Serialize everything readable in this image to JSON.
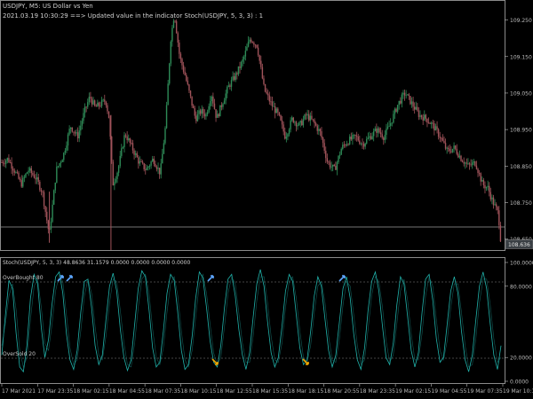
{
  "colors": {
    "background": "#000000",
    "bull_candle": "#2e8b57",
    "bear_candle": "#a0535a",
    "stoch_main": "#20b2aa",
    "level_line": "#8a8a8a",
    "axis": "#bbbbbb",
    "buy_arrow": "#5da6ff",
    "sell_arrow": "#f0a500"
  },
  "main_chart": {
    "symbol_line": "USDJPY, M5:  US Dollar vs Yen",
    "status_line": "2021.03.19 10:30:29 ==> Updated value in the indicator Stoch(USDJPY, 5, 3, 3) : 1",
    "price_labels": [
      "109.250",
      "109.150",
      "109.050",
      "108.950",
      "108.850",
      "108.750",
      "108.650"
    ],
    "current_price": "108.636"
  },
  "indicator": {
    "title": "Stoch(USDJPY, 5, 3, 3) 48.8636 31.1579 0.0000 0.0000 0.0000 0.0000",
    "overbought_label": "OverBought 80",
    "oversold_label": "OverSold 20",
    "scale_labels": [
      "100.0000",
      "80.0000",
      "20.0000",
      "0.0000"
    ]
  },
  "time_axis": [
    "17 Mar 2021",
    "17 Mar 23:35",
    "18 Mar 02:15",
    "18 Mar 04:55",
    "18 Mar 07:35",
    "18 Mar 10:15",
    "18 Mar 12:55",
    "18 Mar 15:35",
    "18 Mar 18:15",
    "18 Mar 20:55",
    "18 Mar 23:35",
    "19 Mar 02:15",
    "19 Mar 04:55",
    "19 Mar 07:35",
    "19 Mar 10:15"
  ],
  "chart_data": [
    {
      "type": "candlestick",
      "title": "USDJPY, M5:  US Dollar vs Yen",
      "ylim": [
        108.62,
        109.3
      ],
      "y_ticks": [
        109.25,
        109.15,
        109.05,
        108.95,
        108.85,
        108.75,
        108.65
      ],
      "current_price": 108.636,
      "close_path": [
        [
          0,
          108.86
        ],
        [
          7,
          108.87
        ],
        [
          14,
          108.84
        ],
        [
          22,
          108.8
        ],
        [
          30,
          108.84
        ],
        [
          38,
          108.82
        ],
        [
          46,
          108.78
        ],
        [
          54,
          108.66
        ],
        [
          62,
          108.84
        ],
        [
          70,
          108.88
        ],
        [
          78,
          108.96
        ],
        [
          86,
          108.93
        ],
        [
          94,
          109.0
        ],
        [
          100,
          109.04
        ],
        [
          106,
          109.01
        ],
        [
          112,
          109.02
        ],
        [
          118,
          109.03
        ],
        [
          122,
          108.98
        ],
        [
          126,
          108.8
        ],
        [
          132,
          108.84
        ],
        [
          140,
          108.94
        ],
        [
          148,
          108.9
        ],
        [
          156,
          108.86
        ],
        [
          164,
          108.84
        ],
        [
          172,
          108.87
        ],
        [
          180,
          108.83
        ],
        [
          186,
          108.96
        ],
        [
          192,
          109.2
        ],
        [
          196,
          109.27
        ],
        [
          202,
          109.15
        ],
        [
          208,
          109.1
        ],
        [
          214,
          109.04
        ],
        [
          220,
          108.98
        ],
        [
          226,
          109.0
        ],
        [
          232,
          108.99
        ],
        [
          238,
          109.05
        ],
        [
          244,
          108.98
        ],
        [
          250,
          109.02
        ],
        [
          258,
          109.07
        ],
        [
          266,
          109.1
        ],
        [
          274,
          109.14
        ],
        [
          282,
          109.2
        ],
        [
          290,
          109.18
        ],
        [
          298,
          109.06
        ],
        [
          306,
          109.02
        ],
        [
          314,
          108.99
        ],
        [
          322,
          108.93
        ],
        [
          330,
          108.98
        ],
        [
          338,
          108.96
        ],
        [
          346,
          108.99
        ],
        [
          354,
          108.97
        ],
        [
          362,
          108.94
        ],
        [
          370,
          108.86
        ],
        [
          378,
          108.84
        ],
        [
          386,
          108.9
        ],
        [
          394,
          108.92
        ],
        [
          402,
          108.93
        ],
        [
          410,
          108.91
        ],
        [
          418,
          108.93
        ],
        [
          426,
          108.95
        ],
        [
          434,
          108.93
        ],
        [
          442,
          108.97
        ],
        [
          450,
          109.02
        ],
        [
          458,
          109.05
        ],
        [
          466,
          109.02
        ],
        [
          474,
          108.99
        ],
        [
          482,
          108.98
        ],
        [
          490,
          108.96
        ],
        [
          498,
          108.93
        ],
        [
          506,
          108.89
        ],
        [
          514,
          108.9
        ],
        [
          522,
          108.87
        ],
        [
          530,
          108.85
        ],
        [
          538,
          108.86
        ],
        [
          546,
          108.8
        ],
        [
          552,
          108.79
        ],
        [
          558,
          108.75
        ],
        [
          564,
          108.72
        ],
        [
          567,
          108.636
        ]
      ]
    },
    {
      "type": "line",
      "title": "Stoch(USDJPY, 5, 3, 3) 48.8636 31.1579 0.0000 0.0000 0.0000 0.0000",
      "ylim": [
        0,
        100
      ],
      "levels": [
        80,
        20
      ],
      "y_ticks": [
        100,
        80,
        20,
        0
      ],
      "series": [
        {
          "values": [
            22,
            55,
            85,
            78,
            40,
            12,
            8,
            30,
            70,
            90,
            82,
            45,
            20,
            35,
            65,
            88,
            92,
            74,
            40,
            18,
            10,
            26,
            58,
            84,
            86,
            62,
            30,
            14,
            22,
            52,
            80,
            91,
            76,
            44,
            20,
            9,
            18,
            48,
            78,
            93,
            88,
            60,
            28,
            12,
            16,
            42,
            74,
            90,
            85,
            58,
            26,
            10,
            14,
            38,
            70,
            92,
            87,
            62,
            34,
            16,
            12,
            30,
            62,
            86,
            90,
            72,
            44,
            22,
            10,
            24,
            54,
            82,
            94,
            80,
            50,
            24,
            12,
            20,
            46,
            76,
            90,
            84,
            56,
            28,
            14,
            18,
            42,
            72,
            88,
            80,
            52,
            26,
            12,
            22,
            50,
            78,
            88,
            70,
            40,
            18,
            10,
            28,
            60,
            84,
            92,
            76,
            46,
            20,
            14,
            32,
            64,
            88,
            82,
            54,
            26,
            12,
            24,
            58,
            86,
            90,
            68,
            36,
            16,
            20,
            48,
            76,
            88,
            74,
            42,
            18,
            8,
            22,
            52,
            80,
            92,
            78,
            48,
            22,
            10,
            30
          ]
        },
        {
          "values": [
            30,
            48,
            72,
            82,
            60,
            26,
            12,
            20,
            52,
            80,
            86,
            62,
            32,
            26,
            48,
            76,
            90,
            84,
            56,
            28,
            14,
            18,
            42,
            72,
            86,
            74,
            46,
            22,
            18,
            38,
            66,
            86,
            84,
            60,
            32,
            14,
            12,
            32,
            62,
            86,
            90,
            74,
            44,
            20,
            14,
            28,
            58,
            82,
            88,
            72,
            42,
            18,
            12,
            26,
            54,
            82,
            90,
            74,
            48,
            24,
            14,
            20,
            46,
            74,
            88,
            82,
            58,
            32,
            16,
            16,
            38,
            68,
            88,
            88,
            66,
            38,
            18,
            16,
            32,
            62,
            84,
            88,
            70,
            42,
            20,
            16,
            30,
            58,
            80,
            84,
            66,
            38,
            18,
            16,
            36,
            64,
            84,
            80,
            56,
            30,
            14,
            18,
            44,
            72,
            88,
            84,
            62,
            34,
            16,
            22,
            48,
            76,
            86,
            68,
            40,
            18,
            18,
            40,
            72,
            88,
            80,
            52,
            26,
            18,
            34,
            62,
            82,
            82,
            58,
            30,
            12,
            14,
            36,
            66,
            86,
            86,
            64,
            36,
            16,
            20
          ]
        }
      ],
      "signals": [
        {
          "type": "buy",
          "time": "17 Mar 23:35",
          "value": 80
        },
        {
          "type": "buy",
          "time": "18 Mar 02:15",
          "value": 80
        },
        {
          "type": "buy",
          "time": "18 Mar 10:15",
          "value": 80
        },
        {
          "type": "sell",
          "time": "18 Mar 10:15",
          "value": 20
        },
        {
          "type": "sell",
          "time": "18 Mar 18:15",
          "value": 20
        },
        {
          "type": "buy",
          "time": "18 Mar 20:55",
          "value": 80
        }
      ]
    }
  ]
}
